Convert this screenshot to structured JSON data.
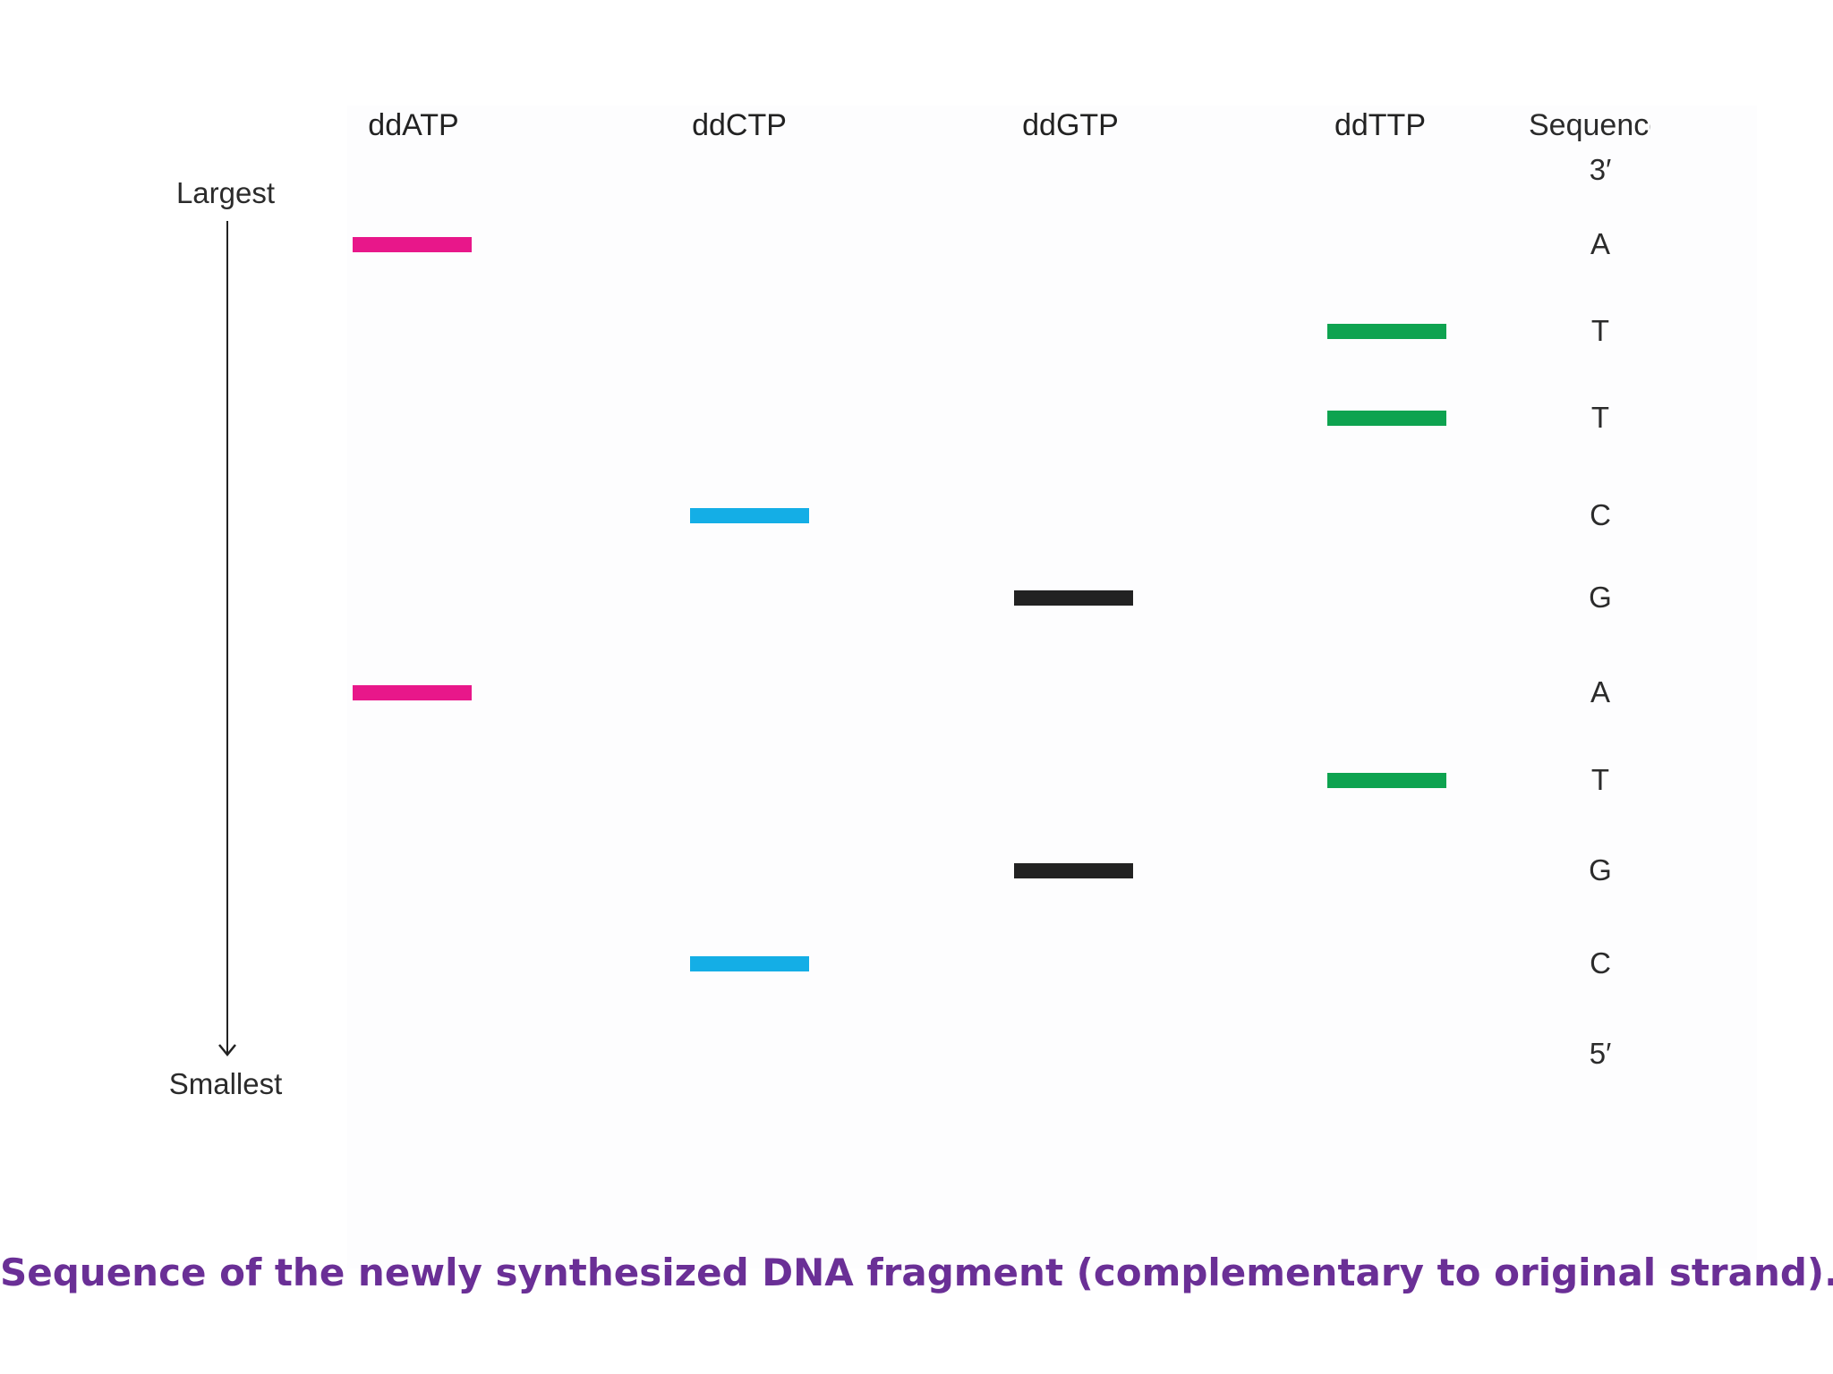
{
  "lanes": [
    {
      "key": "ddATP",
      "label": "ddATP",
      "color": "#e8178a",
      "band_positions": [
        1,
        6
      ]
    },
    {
      "key": "ddCTP",
      "label": "ddCTP",
      "color": "#14aee6",
      "band_positions": [
        4,
        9
      ]
    },
    {
      "key": "ddGTP",
      "label": "ddGTP",
      "color": "#222222",
      "band_positions": [
        5,
        8
      ]
    },
    {
      "key": "ddTTP",
      "label": "ddTTP",
      "color": "#0ea350",
      "band_positions": [
        2,
        3,
        7
      ]
    }
  ],
  "sequence": {
    "header": "Sequence",
    "end_top": "3′",
    "end_bottom": "5′",
    "letters": [
      "A",
      "T",
      "T",
      "C",
      "G",
      "A",
      "T",
      "G",
      "C"
    ]
  },
  "axis": {
    "top_label": "Largest",
    "bottom_label": "Smallest"
  },
  "caption": "Sequence of the newly synthesized DNA fragment (complementary to original strand)."
}
